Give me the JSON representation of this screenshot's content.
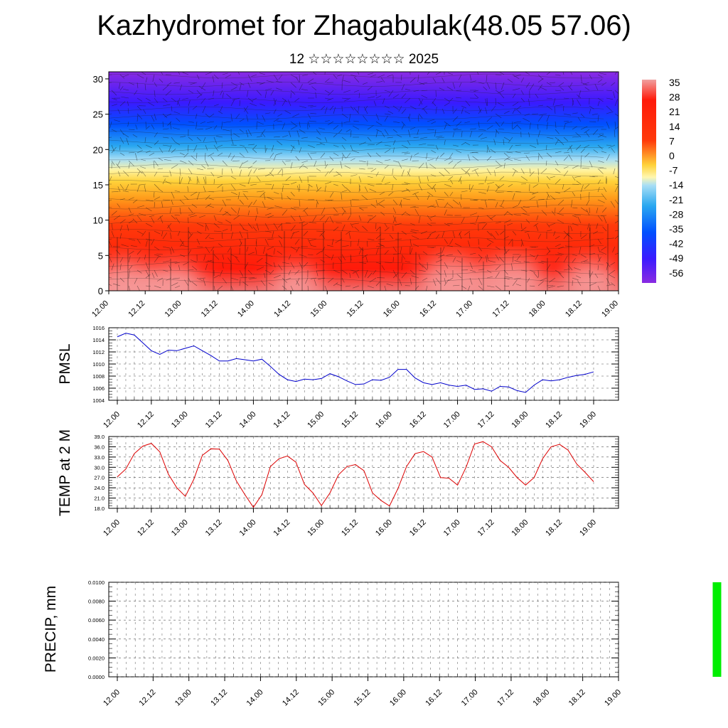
{
  "title": "Kazhydromet for Zhagabulak(48.05 57.06)",
  "subtitle": "12 ☆☆☆☆☆☆☆☆ 2025",
  "chart_data": [
    {
      "type": "heatmap",
      "name": "upper-air temperature cross-section",
      "x_tick_labels": [
        "12.00",
        "12.12",
        "13.00",
        "13.12",
        "14.00",
        "14.12",
        "15.00",
        "15.12",
        "16.00",
        "16.12",
        "17.00",
        "17.12",
        "18.00",
        "18.12",
        "19.00"
      ],
      "y_tick_labels": [
        "0",
        "5",
        "10",
        "15",
        "20",
        "25",
        "30"
      ],
      "ylim": [
        0,
        31
      ],
      "colorbar_labels": [
        "35",
        "28",
        "21",
        "14",
        "7",
        "0",
        "-7",
        "-14",
        "-21",
        "-28",
        "-35",
        "-42",
        "-49",
        "-56"
      ],
      "colorbar_range": [
        -60,
        38
      ],
      "colors": [
        "#8a2be2",
        "#3a1aff",
        "#0050ff",
        "#2aa8f0",
        "#a8def5",
        "#fff7b0",
        "#ffd23a",
        "#ff9a1a",
        "#ff4a0a",
        "#ff1a0a",
        "#e00a0a",
        "#f08080"
      ]
    },
    {
      "type": "line",
      "ylabel": "PMSL",
      "ylim": [
        1004,
        1016
      ],
      "y_tick_labels": [
        "1004",
        "1006",
        "1008",
        "1010",
        "1012",
        "1014",
        "1016"
      ],
      "x_tick_labels": [
        "12.00",
        "12.12",
        "13.00",
        "13.12",
        "14.00",
        "14.12",
        "15.00",
        "15.12",
        "16.00",
        "16.12",
        "17.00",
        "17.12",
        "18.00",
        "18.12",
        "19.00"
      ],
      "color": "#0000cc",
      "values": [
        1014.5,
        1015.1,
        1014.8,
        1013.5,
        1012.2,
        1011.6,
        1012.3,
        1012.2,
        1012.6,
        1013.0,
        1012.2,
        1011.4,
        1010.5,
        1010.5,
        1010.9,
        1010.7,
        1010.5,
        1010.8,
        1009.6,
        1008.3,
        1007.4,
        1007.1,
        1007.5,
        1007.4,
        1007.6,
        1008.4,
        1007.9,
        1007.2,
        1006.6,
        1006.7,
        1007.4,
        1007.3,
        1007.8,
        1009.1,
        1009.1,
        1007.7,
        1006.9,
        1006.6,
        1006.9,
        1006.5,
        1006.3,
        1006.5,
        1005.8,
        1005.9,
        1005.5,
        1006.3,
        1006.2,
        1005.6,
        1005.3,
        1006.5,
        1007.4,
        1007.2,
        1007.4,
        1007.8,
        1008.1,
        1008.3,
        1008.7
      ]
    },
    {
      "type": "line",
      "ylabel": "TEMP at 2 M",
      "ylim": [
        18.0,
        39.0
      ],
      "y_tick_labels": [
        "18.0",
        "21.0",
        "24.0",
        "27.0",
        "30.0",
        "33.0",
        "36.0",
        "39.0"
      ],
      "x_tick_labels": [
        "12.00",
        "12.12",
        "13.00",
        "13.12",
        "14.00",
        "14.12",
        "15.00",
        "15.12",
        "16.00",
        "16.12",
        "17.00",
        "17.12",
        "18.00",
        "18.12",
        "19.00"
      ],
      "color": "#dd0000",
      "values": [
        27.2,
        29.5,
        34.0,
        36.2,
        37.0,
        34.5,
        28.0,
        24.0,
        21.5,
        26.5,
        33.5,
        35.4,
        35.3,
        32.0,
        26.0,
        22.0,
        18.3,
        22.0,
        30.2,
        32.5,
        33.3,
        31.5,
        25.0,
        22.5,
        18.8,
        22.5,
        27.8,
        30.2,
        30.8,
        29.0,
        22.5,
        20.3,
        18.7,
        23.8,
        30.2,
        34.0,
        34.6,
        33.0,
        27.0,
        26.8,
        24.8,
        30.0,
        36.8,
        37.5,
        36.0,
        32.0,
        30.0,
        27.0,
        24.8,
        27.0,
        32.5,
        36.0,
        36.7,
        35.0,
        31.0,
        28.5,
        25.8
      ]
    },
    {
      "type": "bar",
      "ylabel": "PRECIP, mm",
      "ylim": [
        0.0,
        0.01
      ],
      "y_tick_labels": [
        "0.0000",
        "0.0020",
        "0.0040",
        "0.0060",
        "0.0080",
        "0.0100"
      ],
      "x_tick_labels": [
        "12.00",
        "12.12",
        "13.00",
        "13.12",
        "14.00",
        "14.12",
        "15.00",
        "15.12",
        "16.00",
        "16.12",
        "17.00",
        "17.12",
        "18.00",
        "18.12",
        "19.00"
      ],
      "color": "#00ee00",
      "bars": [
        {
          "x": 67,
          "value": 0.01
        }
      ]
    }
  ]
}
